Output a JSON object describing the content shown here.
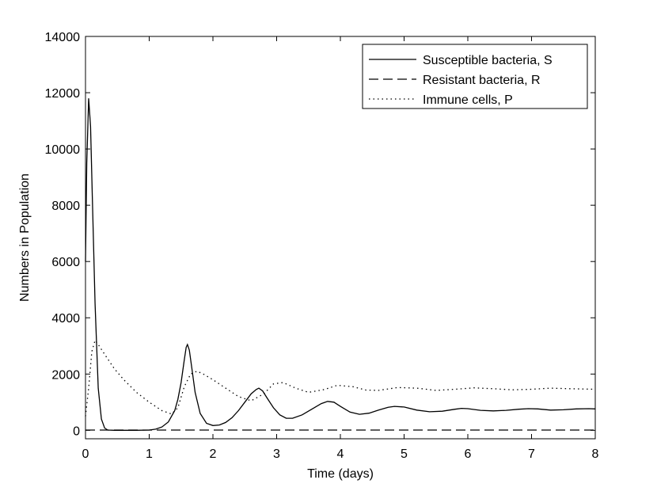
{
  "chart_data": {
    "type": "line",
    "title": "",
    "xlabel": "Time (days)",
    "ylabel": "Numbers in Population",
    "xlim": [
      0,
      8
    ],
    "ylim": [
      -300,
      14000
    ],
    "xticks": [
      "0",
      "1",
      "2",
      "3",
      "4",
      "5",
      "6",
      "7",
      "8"
    ],
    "yticks": [
      "0",
      "2000",
      "4000",
      "6000",
      "8000",
      "10000",
      "12000",
      "14000"
    ],
    "grid": false,
    "legend_position": "top-right",
    "series": [
      {
        "name": "Susceptible bacteria, S",
        "style": "solid",
        "color": "#000000",
        "x": [
          0,
          0.02,
          0.05,
          0.08,
          0.11,
          0.15,
          0.2,
          0.25,
          0.3,
          0.35,
          0.45,
          0.6,
          0.8,
          1.0,
          1.1,
          1.2,
          1.3,
          1.4,
          1.45,
          1.5,
          1.55,
          1.58,
          1.6,
          1.63,
          1.67,
          1.72,
          1.8,
          1.9,
          2.0,
          2.1,
          2.2,
          2.3,
          2.4,
          2.5,
          2.6,
          2.68,
          2.72,
          2.78,
          2.85,
          2.95,
          3.05,
          3.15,
          3.25,
          3.4,
          3.55,
          3.7,
          3.8,
          3.9,
          4.0,
          4.15,
          4.3,
          4.45,
          4.6,
          4.75,
          4.85,
          5.0,
          5.2,
          5.4,
          5.6,
          5.8,
          5.9,
          6.0,
          6.2,
          6.4,
          6.6,
          6.8,
          6.95,
          7.1,
          7.3,
          7.5,
          7.7,
          7.9,
          8.0
        ],
        "y": [
          6000,
          9500,
          11800,
          10800,
          8000,
          4500,
          1500,
          400,
          80,
          10,
          0,
          0,
          0,
          10,
          40,
          120,
          300,
          700,
          1100,
          1700,
          2500,
          2950,
          3050,
          2850,
          2200,
          1350,
          600,
          250,
          170,
          190,
          280,
          450,
          700,
          1000,
          1300,
          1450,
          1500,
          1400,
          1150,
          800,
          550,
          430,
          430,
          550,
          750,
          950,
          1030,
          1000,
          850,
          650,
          570,
          610,
          720,
          820,
          850,
          830,
          720,
          660,
          680,
          750,
          780,
          770,
          710,
          690,
          710,
          750,
          770,
          760,
          720,
          730,
          760,
          770,
          760
        ]
      },
      {
        "name": "Resistant bacteria, R",
        "style": "dashed",
        "color": "#000000",
        "x": [
          0,
          1,
          2,
          3,
          4,
          5,
          6,
          7,
          8
        ],
        "y": [
          10,
          10,
          10,
          10,
          10,
          10,
          10,
          10,
          10
        ]
      },
      {
        "name": "Immune cells, P",
        "style": "dotted",
        "color": "#000000",
        "x": [
          0,
          0.05,
          0.1,
          0.15,
          0.2,
          0.3,
          0.45,
          0.6,
          0.8,
          1.0,
          1.2,
          1.35,
          1.45,
          1.55,
          1.65,
          1.75,
          1.85,
          2.0,
          2.2,
          2.4,
          2.6,
          2.8,
          2.95,
          3.1,
          3.3,
          3.5,
          3.75,
          3.95,
          4.2,
          4.4,
          4.6,
          4.9,
          5.2,
          5.5,
          5.8,
          6.1,
          6.4,
          6.7,
          7.0,
          7.3,
          7.6,
          8.0
        ],
        "y": [
          500,
          1500,
          2800,
          3200,
          3050,
          2700,
          2200,
          1800,
          1350,
          1000,
          700,
          580,
          800,
          1550,
          2000,
          2100,
          2000,
          1800,
          1500,
          1200,
          1050,
          1300,
          1650,
          1700,
          1500,
          1350,
          1450,
          1600,
          1550,
          1430,
          1420,
          1520,
          1500,
          1420,
          1460,
          1510,
          1480,
          1440,
          1460,
          1500,
          1480,
          1460
        ]
      }
    ]
  }
}
